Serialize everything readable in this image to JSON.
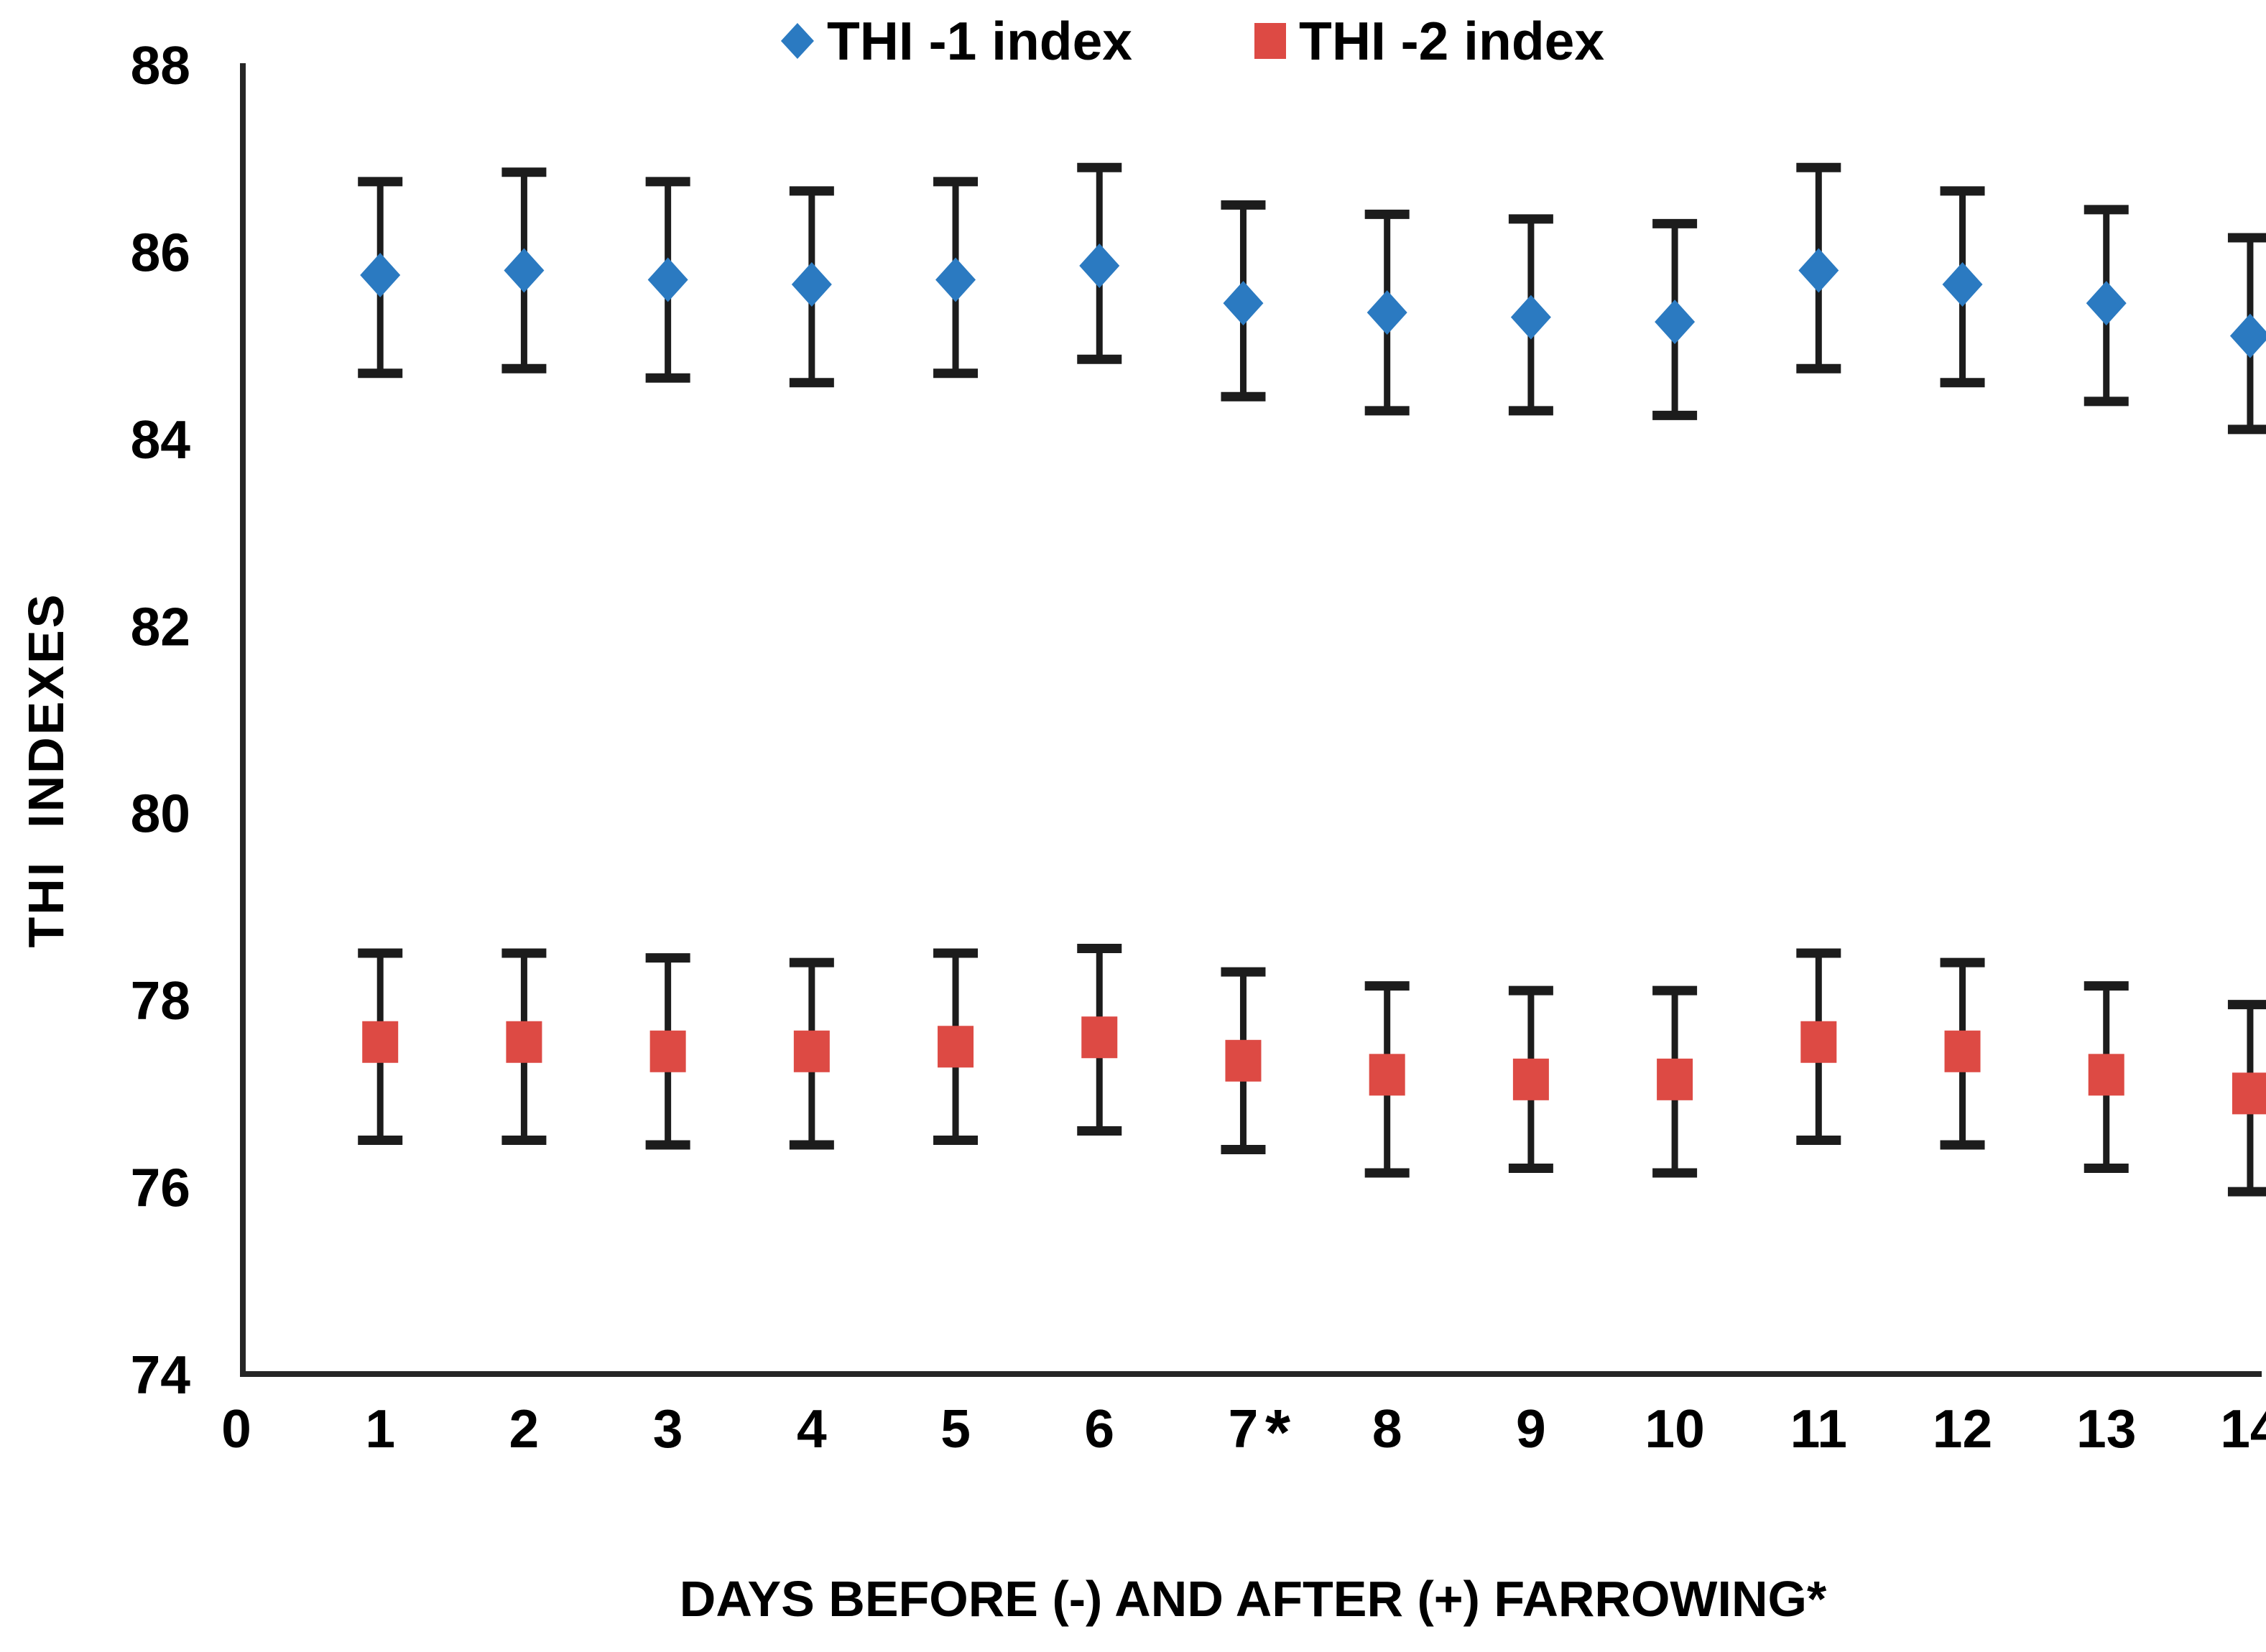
{
  "chart_data": {
    "type": "scatter",
    "title": "",
    "xlabel": "DAYS BEFORE (-) AND AFTER (+) FARROWING*",
    "ylabel": "THI  INDEXES",
    "x_ticks": [
      0,
      1,
      2,
      3,
      4,
      5,
      6,
      7,
      8,
      9,
      10,
      11,
      12,
      13,
      14
    ],
    "y_ticks": [
      88,
      86,
      84,
      82,
      80,
      78,
      76,
      74
    ],
    "xlim": [
      0,
      14
    ],
    "ylim": [
      74,
      88
    ],
    "grid": false,
    "legend_position": "top-center",
    "x_axis_annotation": {
      "symbol": "*",
      "between_ticks": [
        7,
        8
      ]
    },
    "axis_color": "#262626",
    "error_bar_color": "#1c1c1c",
    "series": [
      {
        "name": "THI -1 index",
        "marker": "diamond",
        "color": "#2b7ac1",
        "x": [
          1,
          2,
          3,
          4,
          5,
          6,
          7,
          8,
          9,
          10,
          11,
          12,
          13,
          14
        ],
        "y": [
          85.75,
          85.8,
          85.7,
          85.65,
          85.7,
          85.85,
          85.45,
          85.35,
          85.3,
          85.25,
          85.8,
          85.65,
          85.45,
          85.1
        ],
        "err_high": [
          86.75,
          86.85,
          86.75,
          86.65,
          86.75,
          86.9,
          86.5,
          86.4,
          86.35,
          86.3,
          86.9,
          86.65,
          86.45,
          86.15
        ],
        "err_low": [
          84.7,
          84.75,
          84.65,
          84.6,
          84.7,
          84.85,
          84.45,
          84.3,
          84.3,
          84.25,
          84.75,
          84.6,
          84.4,
          84.1
        ]
      },
      {
        "name": "THI -2 index",
        "marker": "square",
        "color": "#dd4a44",
        "x": [
          1,
          2,
          3,
          4,
          5,
          6,
          7,
          8,
          9,
          10,
          11,
          12,
          13,
          14
        ],
        "y": [
          77.55,
          77.55,
          77.45,
          77.45,
          77.5,
          77.6,
          77.35,
          77.2,
          77.15,
          77.15,
          77.55,
          77.45,
          77.2,
          77.0
        ],
        "err_high": [
          78.5,
          78.5,
          78.45,
          78.4,
          78.5,
          78.55,
          78.3,
          78.15,
          78.1,
          78.1,
          78.5,
          78.4,
          78.15,
          77.95
        ],
        "err_low": [
          76.5,
          76.5,
          76.45,
          76.45,
          76.5,
          76.6,
          76.4,
          76.15,
          76.2,
          76.15,
          76.5,
          76.45,
          76.2,
          75.95
        ]
      }
    ]
  }
}
